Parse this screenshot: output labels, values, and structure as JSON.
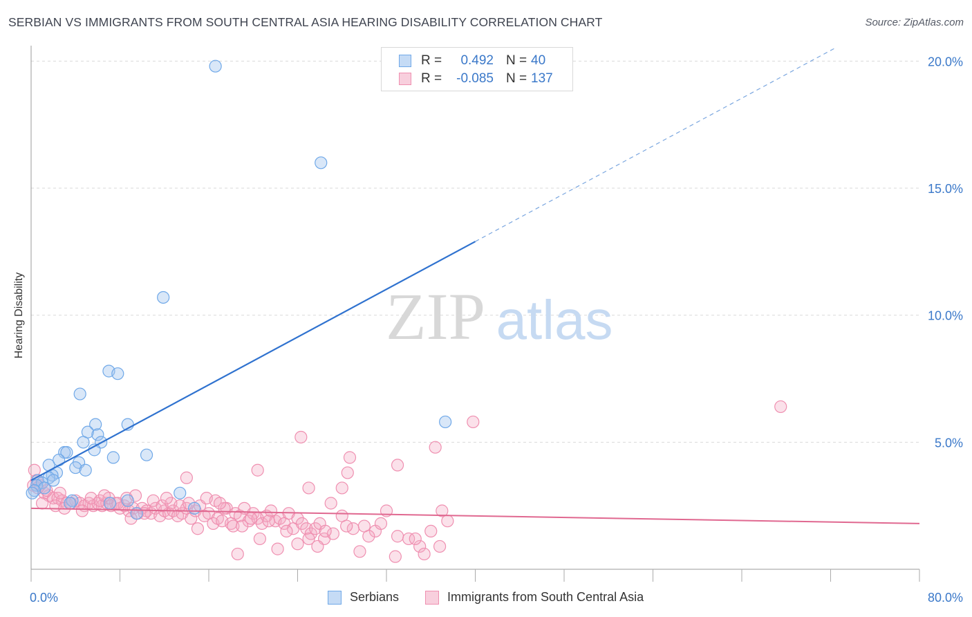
{
  "title": "SERBIAN VS IMMIGRANTS FROM SOUTH CENTRAL ASIA HEARING DISABILITY CORRELATION CHART",
  "source": "Source: ZipAtlas.com",
  "watermark": {
    "zip": "ZIP",
    "atlas": "atlas"
  },
  "legend": {
    "rows": [
      {
        "r_label": "R =",
        "r_value": "0.492",
        "n_label": "N =",
        "n_value": "40",
        "color": "#6fa8e8",
        "fill": "#c5dbf5"
      },
      {
        "r_label": "R =",
        "r_value": "-0.085",
        "n_label": "N =",
        "n_value": "137",
        "color": "#ef8fb0",
        "fill": "#f8cfdd"
      }
    ]
  },
  "bottom_legend": [
    {
      "label": "Serbians",
      "color": "#6fa8e8",
      "fill": "#c5dbf5"
    },
    {
      "label": "Immigrants from South Central Asia",
      "color": "#ef8fb0",
      "fill": "#f8cfdd"
    }
  ],
  "colors": {
    "blue": "#2f72cf",
    "pink": "#e06890",
    "grid": "#d9d9d9",
    "tick": "#3a78c9"
  },
  "chart_data": {
    "type": "scatter",
    "title": "SERBIAN VS IMMIGRANTS FROM SOUTH CENTRAL ASIA HEARING DISABILITY CORRELATION CHART",
    "xlabel": "",
    "ylabel": "Hearing Disability",
    "xlim": [
      0,
      80
    ],
    "ylim": [
      0,
      20.5
    ],
    "x_tick_labels": [
      "0.0%",
      "80.0%"
    ],
    "y_ticks": [
      5,
      10,
      15,
      20
    ],
    "y_tick_labels": [
      "5.0%",
      "10.0%",
      "15.0%",
      "20.0%"
    ],
    "series": [
      {
        "name": "Serbians",
        "points": [
          [
            16.6,
            19.8
          ],
          [
            26.1,
            16.0
          ],
          [
            11.9,
            10.7
          ],
          [
            7.0,
            7.8
          ],
          [
            7.8,
            7.7
          ],
          [
            4.4,
            6.9
          ],
          [
            8.7,
            5.7
          ],
          [
            5.8,
            5.7
          ],
          [
            37.3,
            5.8
          ],
          [
            5.1,
            5.4
          ],
          [
            6.0,
            5.3
          ],
          [
            6.3,
            5.0
          ],
          [
            4.7,
            5.0
          ],
          [
            3.0,
            4.6
          ],
          [
            3.2,
            4.6
          ],
          [
            5.7,
            4.7
          ],
          [
            10.4,
            4.5
          ],
          [
            7.4,
            4.4
          ],
          [
            2.5,
            4.3
          ],
          [
            1.6,
            4.1
          ],
          [
            4.3,
            4.2
          ],
          [
            4.0,
            4.0
          ],
          [
            4.9,
            3.9
          ],
          [
            2.3,
            3.8
          ],
          [
            1.9,
            3.7
          ],
          [
            1.6,
            3.6
          ],
          [
            0.6,
            3.5
          ],
          [
            2.0,
            3.5
          ],
          [
            1.0,
            3.4
          ],
          [
            0.5,
            3.3
          ],
          [
            1.2,
            3.2
          ],
          [
            0.3,
            3.1
          ],
          [
            13.4,
            3.0
          ],
          [
            0.1,
            3.0
          ],
          [
            8.7,
            2.7
          ],
          [
            3.7,
            2.7
          ],
          [
            3.5,
            2.6
          ],
          [
            7.1,
            2.6
          ],
          [
            14.7,
            2.4
          ],
          [
            9.5,
            2.2
          ]
        ]
      },
      {
        "name": "Immigrants from South Central Asia",
        "points": [
          [
            67.5,
            6.4
          ],
          [
            39.8,
            5.8
          ],
          [
            36.4,
            4.8
          ],
          [
            24.3,
            5.2
          ],
          [
            28.7,
            4.4
          ],
          [
            33.0,
            4.1
          ],
          [
            20.4,
            3.9
          ],
          [
            28.5,
            3.8
          ],
          [
            14.0,
            3.6
          ],
          [
            0.3,
            3.9
          ],
          [
            25.0,
            3.2
          ],
          [
            28.0,
            3.2
          ],
          [
            0.5,
            3.5
          ],
          [
            0.8,
            3.3
          ],
          [
            1.2,
            3.0
          ],
          [
            1.6,
            2.9
          ],
          [
            2.0,
            2.8
          ],
          [
            2.4,
            2.8
          ],
          [
            2.8,
            2.7
          ],
          [
            3.2,
            2.6
          ],
          [
            3.6,
            2.6
          ],
          [
            4.0,
            2.7
          ],
          [
            4.4,
            2.6
          ],
          [
            4.8,
            2.5
          ],
          [
            5.2,
            2.6
          ],
          [
            5.6,
            2.5
          ],
          [
            6.0,
            2.6
          ],
          [
            6.4,
            2.5
          ],
          [
            6.8,
            2.6
          ],
          [
            7.2,
            2.5
          ],
          [
            7.6,
            2.6
          ],
          [
            8.0,
            2.4
          ],
          [
            8.4,
            2.5
          ],
          [
            8.8,
            2.3
          ],
          [
            9.2,
            2.4
          ],
          [
            9.6,
            2.2
          ],
          [
            10.0,
            2.4
          ],
          [
            10.4,
            2.3
          ],
          [
            10.8,
            2.2
          ],
          [
            11.2,
            2.4
          ],
          [
            11.6,
            2.1
          ],
          [
            12.0,
            2.3
          ],
          [
            12.4,
            2.2
          ],
          [
            12.8,
            2.3
          ],
          [
            13.2,
            2.1
          ],
          [
            13.6,
            2.2
          ],
          [
            14.0,
            2.4
          ],
          [
            14.4,
            2.0
          ],
          [
            14.8,
            2.3
          ],
          [
            15.2,
            2.5
          ],
          [
            15.6,
            2.1
          ],
          [
            16.0,
            2.2
          ],
          [
            16.4,
            1.8
          ],
          [
            16.8,
            2.0
          ],
          [
            17.2,
            1.9
          ],
          [
            17.6,
            2.4
          ],
          [
            18.0,
            1.8
          ],
          [
            18.4,
            2.2
          ],
          [
            18.8,
            2.1
          ],
          [
            19.2,
            2.4
          ],
          [
            19.6,
            1.9
          ],
          [
            20.0,
            2.2
          ],
          [
            20.4,
            2.0
          ],
          [
            20.8,
            1.8
          ],
          [
            21.2,
            2.1
          ],
          [
            21.6,
            2.3
          ],
          [
            22.0,
            1.9
          ],
          [
            22.4,
            2.0
          ],
          [
            22.8,
            1.8
          ],
          [
            23.2,
            2.2
          ],
          [
            23.6,
            1.6
          ],
          [
            24.0,
            2.0
          ],
          [
            24.4,
            1.8
          ],
          [
            24.8,
            1.6
          ],
          [
            25.2,
            1.4
          ],
          [
            25.6,
            1.6
          ],
          [
            26.0,
            1.8
          ],
          [
            26.4,
            1.2
          ],
          [
            27.0,
            2.6
          ],
          [
            28.0,
            2.1
          ],
          [
            29.0,
            1.6
          ],
          [
            30.0,
            1.7
          ],
          [
            31.0,
            1.5
          ],
          [
            31.5,
            1.8
          ],
          [
            32.0,
            2.3
          ],
          [
            33.0,
            1.3
          ],
          [
            34.0,
            1.2
          ],
          [
            35.0,
            0.9
          ],
          [
            36.0,
            1.5
          ],
          [
            37.0,
            2.3
          ],
          [
            37.5,
            1.9
          ],
          [
            1.0,
            2.6
          ],
          [
            2.2,
            2.5
          ],
          [
            3.0,
            2.4
          ],
          [
            4.6,
            2.3
          ],
          [
            5.4,
            2.8
          ],
          [
            6.2,
            2.7
          ],
          [
            7.0,
            2.8
          ],
          [
            7.8,
            2.6
          ],
          [
            8.6,
            2.8
          ],
          [
            9.4,
            2.9
          ],
          [
            10.2,
            2.2
          ],
          [
            11.0,
            2.7
          ],
          [
            11.8,
            2.5
          ],
          [
            12.6,
            2.6
          ],
          [
            13.4,
            2.5
          ],
          [
            14.2,
            2.6
          ],
          [
            15.0,
            1.6
          ],
          [
            15.8,
            2.8
          ],
          [
            16.6,
            2.7
          ],
          [
            17.4,
            2.4
          ],
          [
            18.2,
            1.7
          ],
          [
            19.0,
            1.7
          ],
          [
            19.8,
            2.0
          ],
          [
            20.6,
            1.2
          ],
          [
            21.4,
            1.9
          ],
          [
            22.2,
            0.8
          ],
          [
            23.0,
            1.5
          ],
          [
            24.0,
            1.0
          ],
          [
            25.0,
            1.2
          ],
          [
            27.2,
            1.4
          ],
          [
            28.4,
            1.7
          ],
          [
            29.6,
            0.7
          ],
          [
            30.4,
            1.3
          ],
          [
            32.8,
            0.5
          ],
          [
            35.4,
            0.6
          ],
          [
            36.8,
            0.9
          ],
          [
            18.6,
            0.6
          ],
          [
            25.8,
            0.9
          ],
          [
            34.6,
            1.2
          ],
          [
            26.5,
            1.5
          ],
          [
            17.0,
            2.6
          ],
          [
            12.2,
            2.8
          ],
          [
            9.0,
            2.0
          ],
          [
            6.6,
            2.9
          ],
          [
            0.2,
            3.3
          ],
          [
            1.4,
            3.1
          ],
          [
            2.6,
            3.0
          ],
          [
            0.6,
            3.2
          ]
        ]
      }
    ],
    "trend_lines": [
      {
        "series": "Serbians",
        "x0": 0,
        "y0": 3.5,
        "x1": 40,
        "y1": 12.9,
        "dashed_to_x": 80,
        "dashed_to_y": 22.3
      },
      {
        "series": "Immigrants from South Central Asia",
        "x0": 0,
        "y0": 2.4,
        "x1": 80,
        "y1": 1.8
      }
    ],
    "legend_position": "top-center"
  }
}
